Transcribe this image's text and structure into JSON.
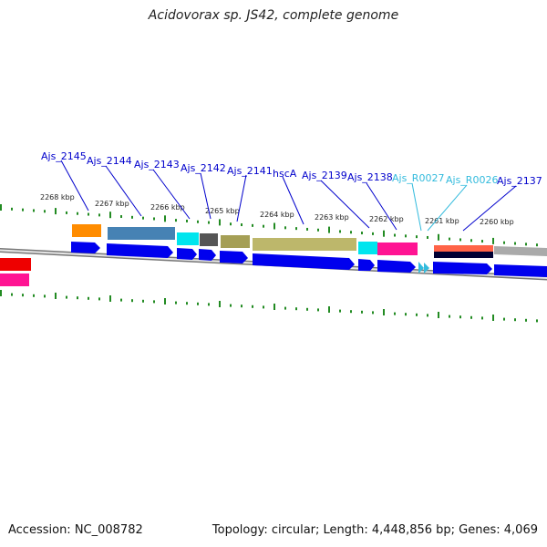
{
  "title": "Acidovorax sp. JS42, complete genome",
  "accession": "Accession: NC_008782",
  "topology": "Topology: circular; Length: 4,448,856 bp; Genes: 4,069",
  "colors": {
    "rna_label": "#33bbdd",
    "protein_label": "#0000cc",
    "arrow": "#0000ee",
    "tick": "#228b22"
  },
  "gene_labels": [
    {
      "name": "Ajs_2145",
      "type": "protein"
    },
    {
      "name": "Ajs_2144",
      "type": "protein"
    },
    {
      "name": "Ajs_2143",
      "type": "protein"
    },
    {
      "name": "Ajs_2142",
      "type": "protein"
    },
    {
      "name": "Ajs_2141",
      "type": "protein"
    },
    {
      "name": "hscA",
      "type": "protein"
    },
    {
      "name": "Ajs_2139",
      "type": "protein"
    },
    {
      "name": "Ajs_2138",
      "type": "protein"
    },
    {
      "name": "Ajs_R0027",
      "type": "rna"
    },
    {
      "name": "Ajs_R0026",
      "type": "rna"
    },
    {
      "name": "Ajs_2137",
      "type": "protein"
    }
  ],
  "kbp_labels": [
    "2268 kbp",
    "2267 kbp",
    "2266 kbp",
    "2265 kbp",
    "2264 kbp",
    "2263 kbp",
    "2262 kbp",
    "2261 kbp",
    "2260 kbp"
  ]
}
